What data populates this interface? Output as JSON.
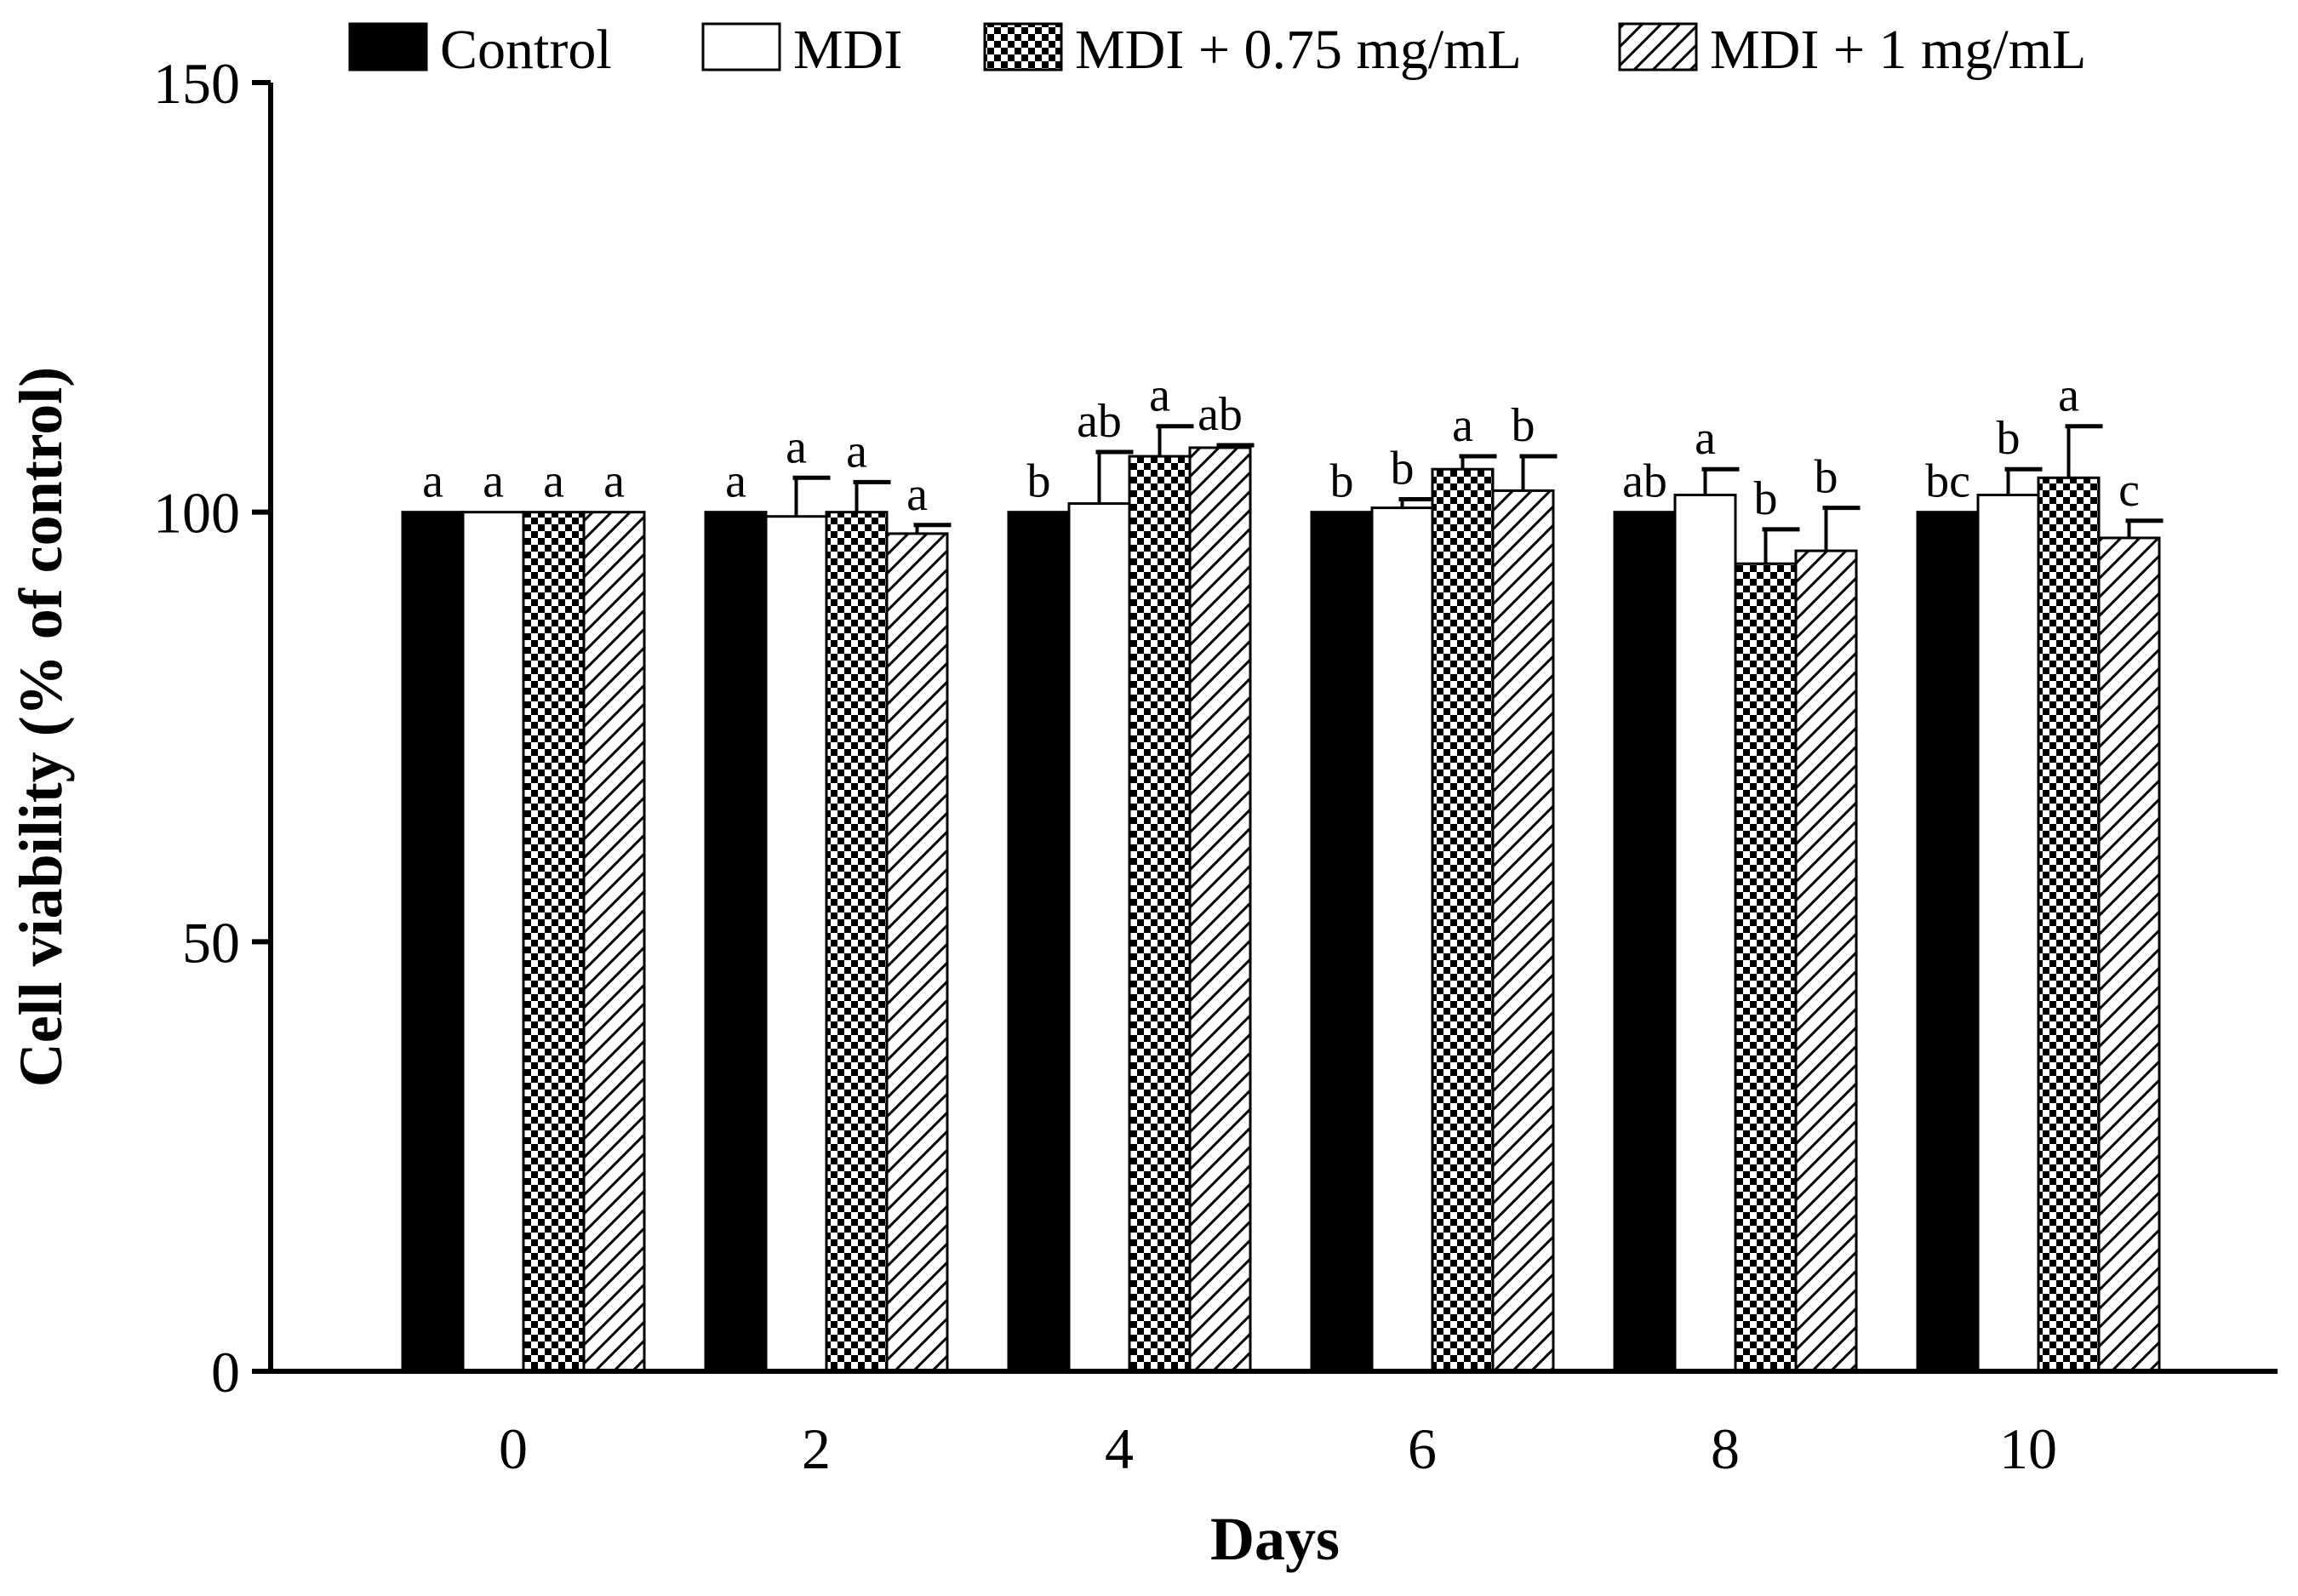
{
  "chart_data": {
    "type": "bar",
    "xlabel": "Days",
    "ylabel": "Cell viability (% of control)",
    "ylim": [
      0,
      150
    ],
    "yticks": [
      "0",
      "50",
      "100",
      "150"
    ],
    "categories": [
      "0",
      "2",
      "4",
      "6",
      "8",
      "10"
    ],
    "legend_position": "top",
    "series": [
      {
        "name": "Control",
        "pattern": "solid",
        "values": [
          100,
          100,
          100,
          100,
          100,
          100
        ],
        "errors": [
          0,
          0,
          0,
          0,
          0,
          0
        ],
        "labels": [
          "a",
          "a",
          "b",
          "b",
          "ab",
          "bc"
        ]
      },
      {
        "name": "MDI",
        "pattern": "empty",
        "values": [
          100,
          99.5,
          101,
          100.5,
          102,
          102
        ],
        "errors": [
          0,
          4.5,
          6,
          1,
          3,
          3
        ],
        "labels": [
          "a",
          "a",
          "ab",
          "b",
          "a",
          "b"
        ]
      },
      {
        "name": "MDI + 0.75 mg/mL",
        "pattern": "checker",
        "values": [
          100,
          100,
          106.5,
          105,
          94,
          104
        ],
        "errors": [
          0,
          3.5,
          3.5,
          1.5,
          4,
          6
        ],
        "labels": [
          "a",
          "a",
          "a",
          "a",
          "b",
          "a"
        ]
      },
      {
        "name": "MDI + 1 mg/mL",
        "pattern": "diagonal",
        "values": [
          100,
          97.5,
          107.5,
          102.5,
          95.5,
          97
        ],
        "errors": [
          0,
          1,
          0.3,
          4,
          5,
          2
        ],
        "labels": [
          "a",
          "a",
          "ab",
          "b",
          "b",
          "c"
        ]
      }
    ]
  }
}
